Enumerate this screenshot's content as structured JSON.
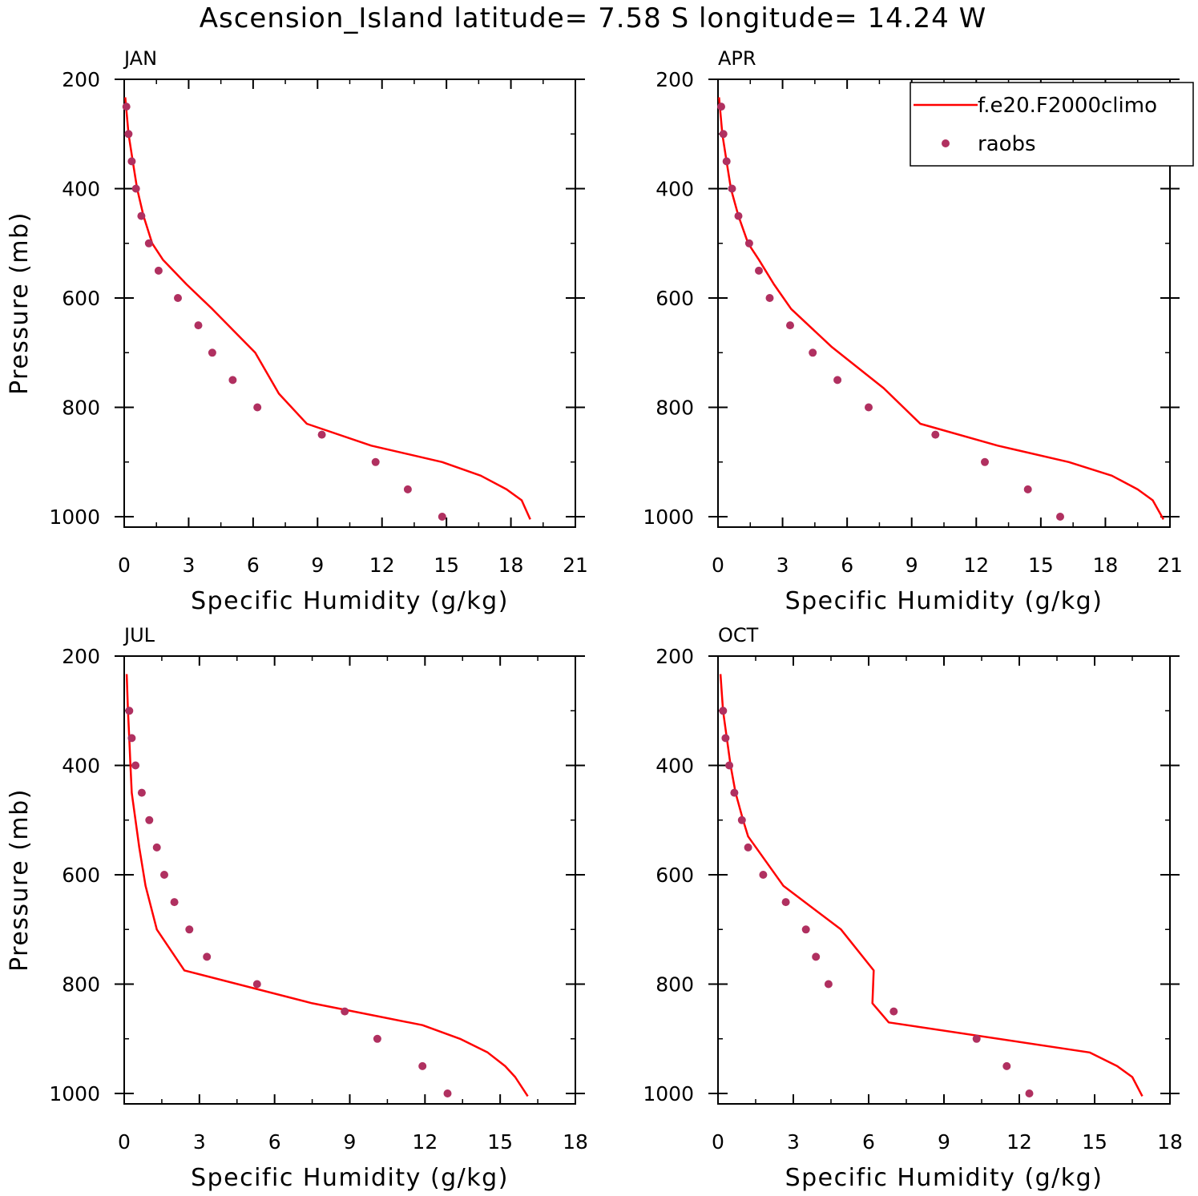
{
  "title": "Ascension_Island  latitude= 7.58 S longitude= 14.24 W",
  "colors": {
    "model": "#ff0000",
    "obs": "#b03060",
    "axes": "#000000"
  },
  "legend": {
    "model_label": "f.e20.F2000climo",
    "obs_label": "raobs"
  },
  "chart_data": [
    {
      "type": "line",
      "panel": "JAN",
      "xlabel": "Specific Humidity (g/kg)",
      "ylabel": "Pressure (mb)",
      "xlim": [
        0,
        21
      ],
      "xticks": [
        0,
        3,
        6,
        9,
        12,
        15,
        18,
        21
      ],
      "ylim": [
        200,
        1000
      ],
      "yticks": [
        200,
        400,
        600,
        800,
        1000
      ],
      "series": [
        {
          "name": "f.e20.F2000climo",
          "style": "line",
          "x": [
            0.05,
            0.2,
            0.4,
            0.6,
            0.9,
            1.3,
            1.8,
            2.9,
            4.1,
            6.1,
            7.2,
            8.5,
            11.5,
            14.8,
            16.6,
            17.8,
            18.5,
            18.9
          ],
          "y": [
            233,
            300,
            350,
            400,
            450,
            500,
            530,
            575,
            620,
            700,
            775,
            830,
            870,
            900,
            925,
            950,
            970,
            1005
          ]
        },
        {
          "name": "raobs",
          "style": "markers",
          "x": [
            0.1,
            0.2,
            0.35,
            0.55,
            0.8,
            1.15,
            1.6,
            2.5,
            3.45,
            4.1,
            5.05,
            6.2,
            9.2,
            11.7,
            13.2,
            14.8
          ],
          "y": [
            250,
            300,
            350,
            400,
            450,
            500,
            550,
            600,
            650,
            700,
            750,
            800,
            850,
            900,
            950,
            1000
          ]
        }
      ]
    },
    {
      "type": "line",
      "panel": "APR",
      "xlabel": "Specific Humidity (g/kg)",
      "ylabel": "",
      "xlim": [
        0,
        21
      ],
      "xticks": [
        0,
        3,
        6,
        9,
        12,
        15,
        18,
        21
      ],
      "ylim": [
        200,
        1000
      ],
      "yticks": [
        200,
        400,
        600,
        800,
        1000
      ],
      "series": [
        {
          "name": "f.e20.F2000climo",
          "style": "line",
          "x": [
            0.05,
            0.2,
            0.4,
            0.6,
            0.95,
            1.4,
            1.9,
            2.6,
            3.4,
            5.3,
            7.7,
            9.4,
            13.0,
            16.3,
            18.3,
            19.5,
            20.2,
            20.7
          ],
          "y": [
            233,
            300,
            350,
            400,
            450,
            500,
            530,
            575,
            620,
            690,
            765,
            830,
            870,
            900,
            925,
            950,
            970,
            1005
          ]
        },
        {
          "name": "raobs",
          "style": "markers",
          "x": [
            0.15,
            0.25,
            0.4,
            0.65,
            0.95,
            1.45,
            1.9,
            2.4,
            3.35,
            4.4,
            5.55,
            7.0,
            10.1,
            12.4,
            14.4,
            15.9
          ],
          "y": [
            250,
            300,
            350,
            400,
            450,
            500,
            550,
            600,
            650,
            700,
            750,
            800,
            850,
            900,
            950,
            1000
          ]
        }
      ]
    },
    {
      "type": "line",
      "panel": "JUL",
      "xlabel": "Specific Humidity (g/kg)",
      "ylabel": "Pressure (mb)",
      "xlim": [
        0,
        18
      ],
      "xticks": [
        0,
        3,
        6,
        9,
        12,
        15,
        18
      ],
      "ylim": [
        200,
        1000
      ],
      "yticks": [
        200,
        400,
        600,
        800,
        1000
      ],
      "series": [
        {
          "name": "f.e20.F2000climo",
          "style": "line",
          "x": [
            0.1,
            0.15,
            0.2,
            0.25,
            0.3,
            0.45,
            0.6,
            0.85,
            1.3,
            2.4,
            7.5,
            11.9,
            13.4,
            14.5,
            15.2,
            15.6,
            16.1
          ],
          "y": [
            233,
            300,
            350,
            400,
            450,
            500,
            550,
            620,
            700,
            775,
            835,
            875,
            900,
            925,
            950,
            970,
            1005
          ]
        },
        {
          "name": "raobs",
          "style": "markers",
          "x": [
            0.2,
            0.3,
            0.45,
            0.7,
            1.0,
            1.3,
            1.6,
            2.0,
            2.6,
            3.3,
            5.3,
            8.8,
            10.1,
            11.9,
            12.9
          ],
          "y": [
            300,
            350,
            400,
            450,
            500,
            550,
            600,
            650,
            700,
            750,
            800,
            850,
            900,
            950,
            1000
          ]
        }
      ]
    },
    {
      "type": "line",
      "panel": "OCT",
      "xlabel": "Specific Humidity (g/kg)",
      "ylabel": "",
      "xlim": [
        0,
        18
      ],
      "xticks": [
        0,
        3,
        6,
        9,
        12,
        15,
        18
      ],
      "ylim": [
        200,
        1000
      ],
      "yticks": [
        200,
        400,
        600,
        800,
        1000
      ],
      "series": [
        {
          "name": "f.e20.F2000climo",
          "style": "line",
          "x": [
            0.1,
            0.2,
            0.35,
            0.5,
            0.7,
            1.0,
            1.2,
            2.6,
            4.9,
            6.2,
            6.15,
            6.8,
            14.8,
            15.9,
            16.5,
            16.9
          ],
          "y": [
            233,
            300,
            350,
            400,
            450,
            500,
            530,
            620,
            700,
            775,
            835,
            870,
            925,
            950,
            970,
            1005
          ]
        },
        {
          "name": "raobs",
          "style": "markers",
          "x": [
            0.2,
            0.3,
            0.45,
            0.65,
            0.95,
            1.2,
            1.8,
            2.7,
            3.5,
            3.9,
            4.4,
            7.0,
            10.3,
            11.5,
            12.4
          ],
          "y": [
            300,
            350,
            400,
            450,
            500,
            550,
            600,
            650,
            700,
            750,
            800,
            850,
            900,
            950,
            1000
          ]
        }
      ]
    }
  ]
}
